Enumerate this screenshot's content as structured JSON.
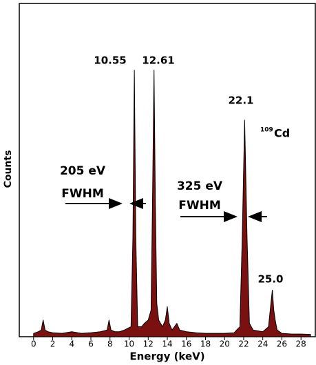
{
  "chart_data": {
    "type": "area",
    "xlabel": "Energy (keV)",
    "ylabel": "Counts",
    "x": [
      0,
      0.5,
      0.8,
      1.0,
      1.2,
      1.5,
      2,
      3,
      4,
      5,
      6,
      7,
      7.7,
      7.9,
      8.1,
      8.5,
      9,
      9.5,
      10.2,
      10.4,
      10.55,
      10.7,
      10.9,
      11.3,
      11.6,
      12.0,
      12.3,
      12.45,
      12.61,
      12.75,
      12.9,
      13.1,
      13.5,
      13.8,
      14.0,
      14.2,
      14.5,
      15,
      15.3,
      16,
      17,
      18,
      19,
      20,
      21,
      21.6,
      21.85,
      22.1,
      22.35,
      22.6,
      23,
      24,
      24.6,
      24.85,
      25.0,
      25.15,
      25.3,
      25.5,
      26,
      27,
      28,
      29
    ],
    "series": [
      {
        "color": "#7a1010",
        "values": [
          1,
          1.5,
          2,
          5,
          2,
          1.5,
          1.2,
          1,
          1.5,
          1,
          1.2,
          1.5,
          2,
          5,
          2,
          1.5,
          1.5,
          2,
          3,
          30,
          80,
          30,
          3,
          3,
          4,
          5,
          8,
          40,
          80,
          40,
          10,
          5,
          3,
          5,
          9,
          4,
          2,
          4,
          2,
          1.5,
          1.2,
          1,
          1,
          1,
          1.2,
          3,
          30,
          65,
          30,
          4,
          2,
          1.5,
          3,
          10,
          14,
          8,
          5,
          2,
          1,
          0.8,
          0.8,
          0.7
        ]
      }
    ],
    "xlim": [
      -1.5,
      29.5
    ],
    "ylim": [
      0,
      100
    ],
    "xticks": [
      0,
      2,
      4,
      6,
      8,
      10,
      12,
      14,
      16,
      18,
      20,
      22,
      24,
      26,
      28
    ],
    "annotations": {
      "peaks": [
        "10.55",
        "12.61",
        "22.1",
        "25.0"
      ],
      "isotope_mass": "109",
      "isotope": "Cd",
      "fwhm1_value": "205 eV",
      "fwhm1_label": "FWHM",
      "fwhm2_value": "325 eV",
      "fwhm2_label": "FWHM"
    }
  }
}
